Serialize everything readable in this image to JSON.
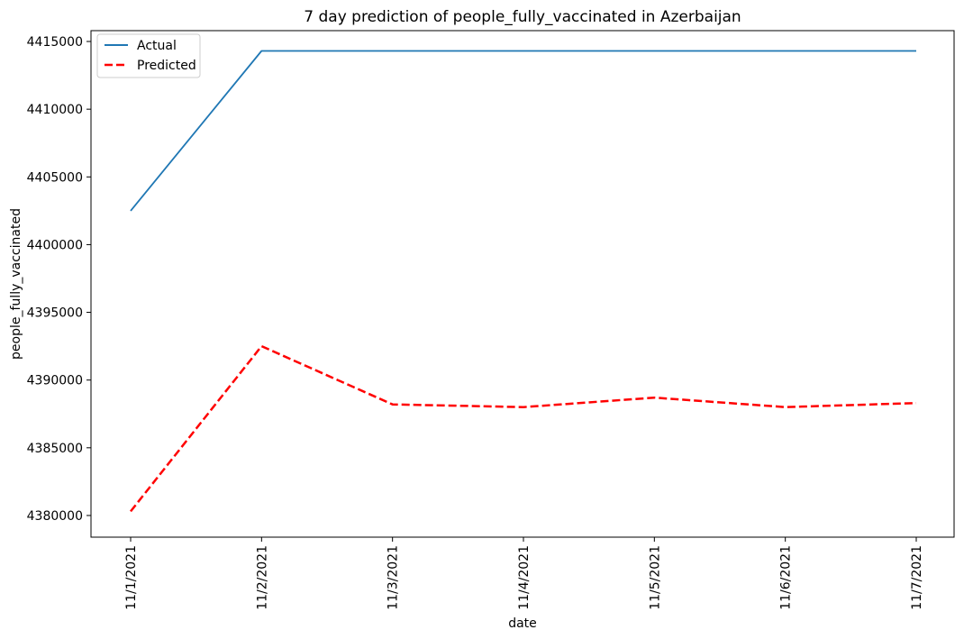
{
  "chart_data": {
    "type": "line",
    "title": "7 day prediction of people_fully_vaccinated in Azerbaijan",
    "xlabel": "date",
    "ylabel": "people_fully_vaccinated",
    "categories": [
      "11/1/2021",
      "11/2/2021",
      "11/3/2021",
      "11/4/2021",
      "11/5/2021",
      "11/6/2021",
      "11/7/2021"
    ],
    "y_ticks": [
      4380000,
      4385000,
      4390000,
      4395000,
      4400000,
      4405000,
      4410000,
      4415000
    ],
    "ylim": [
      4378400,
      4415800
    ],
    "grid": false,
    "legend_position": "top-left",
    "series": [
      {
        "name": "Actual",
        "color": "#1f77b4",
        "style": "solid",
        "values": [
          4402500,
          4414300,
          4414300,
          4414300,
          4414300,
          4414300,
          4414300
        ]
      },
      {
        "name": "Predicted",
        "color": "#ff0000",
        "style": "dashed",
        "values": [
          4380300,
          4392500,
          4388200,
          4388000,
          4388700,
          4388000,
          4388300
        ]
      }
    ]
  }
}
